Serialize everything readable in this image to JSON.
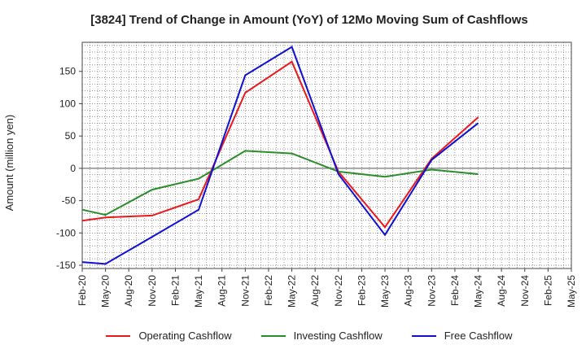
{
  "chart_data": {
    "type": "line",
    "title": "[3824]  Trend of Change in Amount (YoY) of 12Mo Moving Sum of Cashflows",
    "xlabel": "",
    "ylabel": "Amount (million yen)",
    "ylim": [
      -155,
      195
    ],
    "yticks": [
      -150,
      -100,
      -50,
      0,
      50,
      100,
      150
    ],
    "categories": [
      "Feb-20",
      "May-20",
      "Aug-20",
      "Nov-20",
      "Feb-21",
      "May-21",
      "Aug-21",
      "Nov-21",
      "Feb-22",
      "May-22",
      "Aug-22",
      "Nov-22",
      "Feb-23",
      "May-23",
      "Aug-23",
      "Nov-23",
      "Feb-24",
      "May-24",
      "Aug-24",
      "Nov-24",
      "Feb-25",
      "May-25"
    ],
    "series": [
      {
        "name": "Operating Cashflow",
        "color": "#e8191d",
        "values": [
          -81,
          -76,
          null,
          -73,
          null,
          -48,
          null,
          117,
          null,
          165,
          null,
          -5,
          null,
          -91,
          null,
          15,
          null,
          79,
          null,
          null,
          null,
          null
        ]
      },
      {
        "name": "Investing Cashflow",
        "color": "#2a8c2a",
        "values": [
          -64,
          -72,
          null,
          -33,
          null,
          -16,
          null,
          27,
          null,
          23,
          null,
          -5,
          null,
          -13,
          null,
          -2,
          null,
          -9,
          null,
          null,
          null,
          null
        ]
      },
      {
        "name": "Free Cashflow",
        "color": "#1010d0",
        "values": [
          -145,
          -148,
          null,
          -106,
          null,
          -64,
          null,
          144,
          null,
          188,
          null,
          -9,
          null,
          -103,
          null,
          13,
          null,
          70,
          null,
          null,
          null,
          null
        ]
      }
    ]
  },
  "legend": {
    "items": [
      {
        "label": "Operating Cashflow",
        "color": "#e8191d"
      },
      {
        "label": "Investing Cashflow",
        "color": "#2a8c2a"
      },
      {
        "label": "Free Cashflow",
        "color": "#1010d0"
      }
    ]
  }
}
